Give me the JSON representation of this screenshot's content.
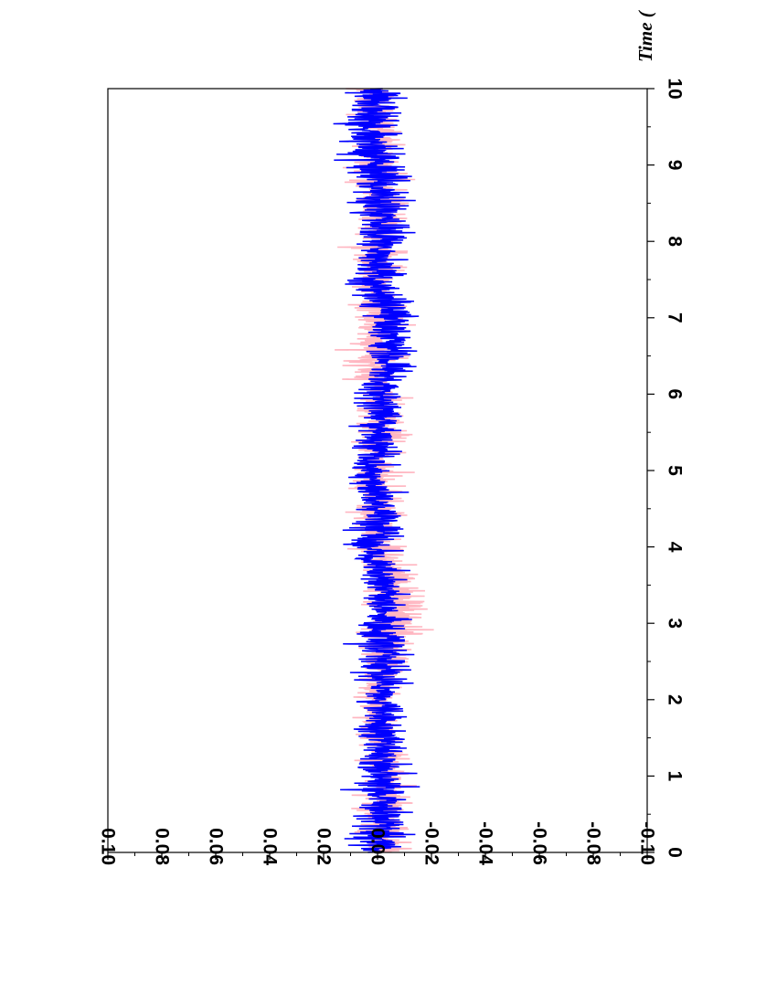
{
  "chart_data": {
    "type": "line",
    "orientation": "rotated-90-clockwise",
    "title": "",
    "xlabel": "Time (",
    "ylabel": "",
    "xlim": [
      0,
      10
    ],
    "ylim": [
      -0.1,
      0.1
    ],
    "x_ticks": [
      "0",
      "1",
      "2",
      "3",
      "4",
      "5",
      "6",
      "7",
      "8",
      "9",
      "10"
    ],
    "y_ticks": [
      "0.10",
      "0.08",
      "0.06",
      "0.04",
      "0.02",
      "0.00",
      "-0.02",
      "-0.04",
      "-0.06",
      "-0.08",
      "-0.10"
    ],
    "grid": false,
    "legend": "none",
    "series": [
      {
        "color": "#ffb6c1",
        "description_noise_envelope": "dense noise around 0, amplitude ~±0.03",
        "x": [
          0.0,
          0.5,
          1.0,
          1.5,
          2.0,
          2.5,
          3.0,
          3.5,
          4.0,
          4.5,
          5.0,
          5.5,
          6.0,
          6.5,
          7.0,
          7.5,
          8.0,
          8.5,
          9.0,
          9.5,
          10.0
        ],
        "y_max": [
          0.022,
          0.025,
          0.02,
          0.022,
          0.022,
          0.026,
          0.025,
          0.027,
          0.026,
          0.028,
          0.026,
          0.024,
          0.025,
          0.028,
          0.027,
          0.026,
          0.028,
          0.028,
          0.028,
          0.029,
          0.028
        ],
        "y_min": [
          -0.03,
          -0.028,
          -0.028,
          -0.025,
          -0.024,
          -0.03,
          -0.04,
          -0.036,
          -0.028,
          -0.026,
          -0.025,
          -0.026,
          -0.027,
          -0.026,
          -0.027,
          -0.027,
          -0.028,
          -0.03,
          -0.029,
          -0.027,
          -0.026
        ]
      },
      {
        "color": "#0000ff",
        "description_noise_envelope": "dense noise around 0, amplitude ~±0.03",
        "x": [
          0.0,
          0.5,
          1.0,
          1.5,
          2.0,
          2.5,
          3.0,
          3.5,
          4.0,
          4.5,
          5.0,
          5.5,
          6.0,
          6.5,
          7.0,
          7.5,
          8.0,
          8.5,
          9.0,
          9.5,
          10.0
        ],
        "y_max": [
          0.03,
          0.024,
          0.027,
          0.022,
          0.021,
          0.031,
          0.023,
          0.022,
          0.03,
          0.024,
          0.026,
          0.023,
          0.024,
          0.02,
          0.024,
          0.029,
          0.026,
          0.028,
          0.034,
          0.032,
          0.027
        ],
        "y_min": [
          -0.028,
          -0.03,
          -0.03,
          -0.026,
          -0.023,
          -0.036,
          -0.025,
          -0.027,
          -0.024,
          -0.025,
          -0.022,
          -0.025,
          -0.026,
          -0.03,
          -0.033,
          -0.027,
          -0.029,
          -0.03,
          -0.034,
          -0.026,
          -0.028
        ]
      }
    ]
  }
}
